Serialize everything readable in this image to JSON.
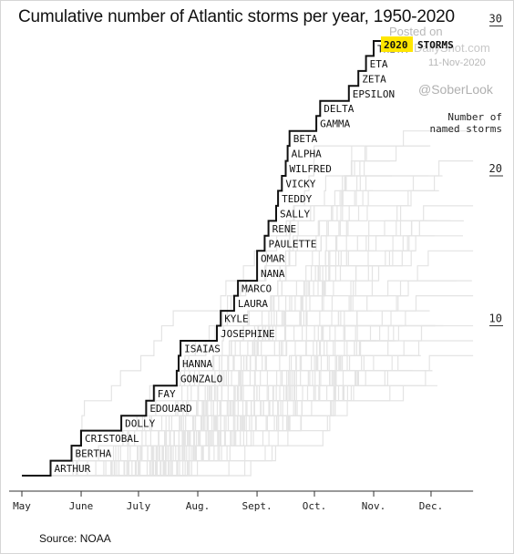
{
  "title": "Cumulative number of Atlantic storms per year, 1950-2020",
  "source": "Source: NOAA",
  "watermark": {
    "line1": "Posted on",
    "line2": "DailyShot.com",
    "line3": "11-Nov-2020",
    "line4": "@SoberLook"
  },
  "legend": {
    "year_label": "2020",
    "storms_label": "STORMS",
    "background_label": "Number of named storms"
  },
  "colors": {
    "highlight": "#ffe600",
    "line_2020": "#111111",
    "history_lines": "#e4e4e4",
    "axis": "#333333"
  },
  "chart_data": {
    "type": "line",
    "title": "Cumulative number of Atlantic storms per year, 1950-2020",
    "xlabel": "",
    "ylabel": "Number of named storms",
    "ylim": [
      0,
      30
    ],
    "x_ticks": [
      "May",
      "June",
      "July",
      "Aug.",
      "Sept.",
      "Oct.",
      "Nov.",
      "Dec."
    ],
    "x_tick_values": [
      0,
      31,
      61,
      92,
      123,
      153,
      184,
      214
    ],
    "y_ticks": [
      10,
      20,
      30
    ],
    "series": [
      {
        "name": "2020",
        "points": [
          {
            "date": "May 16",
            "day": 15,
            "label": "ARTHUR"
          },
          {
            "date": "May 27",
            "day": 26,
            "label": "BERTHA"
          },
          {
            "date": "June 1",
            "day": 31,
            "label": "CRISTOBAL"
          },
          {
            "date": "June 22",
            "day": 52,
            "label": "DOLLY"
          },
          {
            "date": "July 5",
            "day": 65,
            "label": "EDOUARD"
          },
          {
            "date": "July 9",
            "day": 69,
            "label": "FAY"
          },
          {
            "date": "July 21",
            "day": 81,
            "label": "GONZALO"
          },
          {
            "date": "July 22",
            "day": 82,
            "label": "HANNA"
          },
          {
            "date": "July 23",
            "day": 83,
            "label": "ISAIAS"
          },
          {
            "date": "Aug. 11",
            "day": 102,
            "label": "JOSEPHINE"
          },
          {
            "date": "Aug. 13",
            "day": 104,
            "label": "KYLE"
          },
          {
            "date": "Aug. 20",
            "day": 111,
            "label": "LAURA"
          },
          {
            "date": "Aug. 22",
            "day": 113,
            "label": "MARCO"
          },
          {
            "date": "Sept. 1",
            "day": 123,
            "label": "NANA"
          },
          {
            "date": "Sept. 1",
            "day": 123,
            "label": "OMAR"
          },
          {
            "date": "Sept. 5",
            "day": 127,
            "label": "PAULETTE"
          },
          {
            "date": "Sept. 7",
            "day": 129,
            "label": "RENE"
          },
          {
            "date": "Sept. 11",
            "day": 133,
            "label": "SALLY"
          },
          {
            "date": "Sept. 12",
            "day": 134,
            "label": "TEDDY"
          },
          {
            "date": "Sept. 14",
            "day": 136,
            "label": "VICKY"
          },
          {
            "date": "Sept. 16",
            "day": 138,
            "label": "WILFRED"
          },
          {
            "date": "Sept. 17",
            "day": 139,
            "label": "ALPHA"
          },
          {
            "date": "Sept. 18",
            "day": 140,
            "label": "BETA"
          },
          {
            "date": "Oct. 2",
            "day": 154,
            "label": "GAMMA"
          },
          {
            "date": "Oct. 4",
            "day": 156,
            "label": "DELTA"
          },
          {
            "date": "Oct. 19",
            "day": 171,
            "label": "EPSILON"
          },
          {
            "date": "Oct. 24",
            "day": 176,
            "label": "ZETA"
          },
          {
            "date": "Oct. 28",
            "day": 180,
            "label": "ETA"
          },
          {
            "date": "Nov. 1",
            "day": 184,
            "label": "THETA"
          }
        ]
      }
    ],
    "history_count": 70
  }
}
